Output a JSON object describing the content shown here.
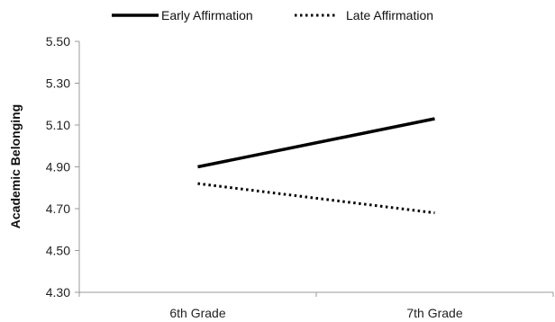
{
  "chart_data": {
    "type": "line",
    "title": "",
    "xlabel": "",
    "ylabel": "Academic Belonging",
    "categories": [
      "6th Grade",
      "7th Grade"
    ],
    "ylim": [
      4.3,
      5.5
    ],
    "yticks": [
      "4.30",
      "4.50",
      "4.70",
      "4.90",
      "5.10",
      "5.30",
      "5.50"
    ],
    "grid": false,
    "legend_position": "top",
    "series": [
      {
        "name": "Early Affirmation",
        "style": "solid",
        "color": "#000000",
        "values": [
          4.9,
          5.13
        ]
      },
      {
        "name": "Late Affirmation",
        "style": "dotted",
        "color": "#000000",
        "values": [
          4.82,
          4.68
        ]
      }
    ]
  }
}
